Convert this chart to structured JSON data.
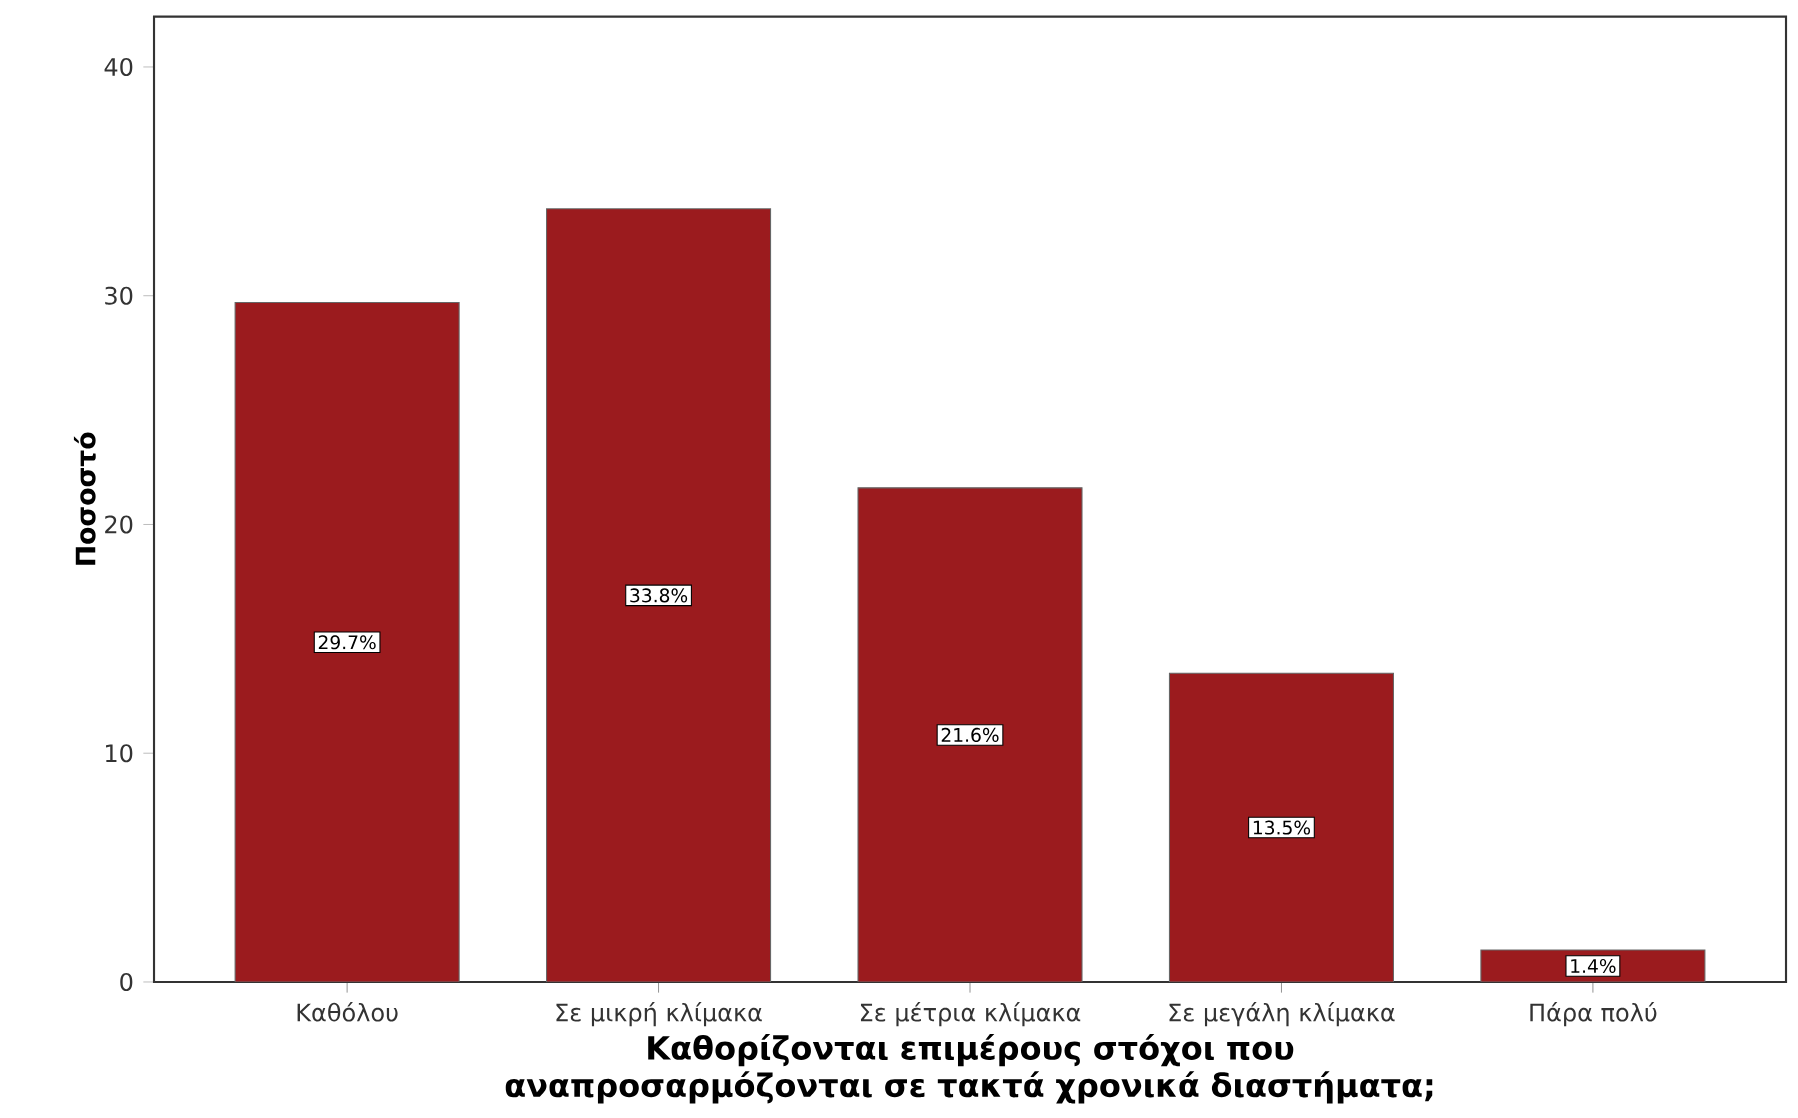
{
  "chart_data": {
    "type": "bar",
    "categories": [
      "Καθόλου",
      "Σε μικρή κλίμακα",
      "Σε μέτρια κλίμακα",
      "Σε μεγάλη κλίμακα",
      "Πάρα πολύ"
    ],
    "values": [
      29.7,
      33.8,
      21.6,
      13.5,
      1.4
    ],
    "value_labels": [
      "29.7%",
      "33.8%",
      "21.6%",
      "13.5%",
      "1.4%"
    ],
    "color": "#9b1b1e",
    "ylim": [
      0,
      42.2
    ],
    "yticks": [
      0,
      10,
      20,
      30,
      40
    ],
    "ylabel": "Ποσοστό",
    "xlabel": "Καθορίζονται επιμέρους στόχοι που αναπροσαρμόζονται σε τακτά χρονικά διαστήματα;",
    "grid": false
  }
}
